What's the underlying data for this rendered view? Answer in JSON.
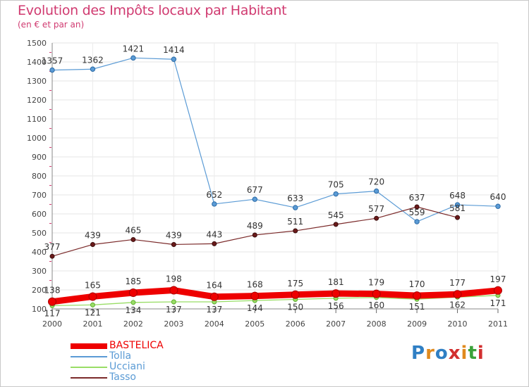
{
  "title": "Evolution des Impôts locaux par Habitant",
  "subtitle": "(en € et par an)",
  "logo": {
    "text": "Proxiti",
    "colors": [
      "#2f7fc4",
      "#e08a1e",
      "#2f7fc4",
      "#d22f2f",
      "#e08a1e",
      "#3aa23a",
      "#d22f2f"
    ]
  },
  "chart_data": {
    "type": "line",
    "title": "Evolution des Impôts locaux par Habitant",
    "subtitle": "(en € et par an)",
    "xlabel": "",
    "ylabel": "",
    "x": [
      "2000",
      "2001",
      "2002",
      "2003",
      "2004",
      "2005",
      "2006",
      "2007",
      "2008",
      "2009",
      "2010",
      "2011"
    ],
    "ylim": [
      100,
      1500
    ],
    "yticks": [
      100,
      200,
      300,
      400,
      500,
      600,
      700,
      800,
      900,
      1000,
      1100,
      1200,
      1300,
      1400,
      1500
    ],
    "grid": true,
    "legend_position": "bottom-left",
    "series": [
      {
        "name": "Tolla",
        "color": "#5b9bd5",
        "values": [
          1357,
          1362,
          1421,
          1414,
          652,
          677,
          633,
          705,
          720,
          559,
          648,
          640
        ],
        "labels": [
          "1357",
          "1362",
          "1421",
          "1414",
          "652",
          "677",
          "633",
          "705",
          "720",
          "559",
          "648",
          "640"
        ]
      },
      {
        "name": "Tasso",
        "color": "#7b2a2a",
        "values": [
          377,
          439,
          465,
          439,
          443,
          489,
          511,
          545,
          577,
          637,
          581,
          null
        ],
        "labels": [
          "377",
          "439",
          "465",
          "439",
          "443",
          "489",
          "511",
          "545",
          "577",
          "637",
          "581",
          ""
        ]
      },
      {
        "name": "Ucciani",
        "color": "#99dd66",
        "values": [
          117,
          121,
          134,
          137,
          137,
          144,
          150,
          156,
          160,
          151,
          162,
          171
        ],
        "labels": [
          "117",
          "121",
          "134",
          "137",
          "137",
          "144",
          "150",
          "156",
          "160",
          "151",
          "162",
          "171"
        ]
      },
      {
        "name": "BASTELICA",
        "color": "#ee0000",
        "values": [
          138,
          165,
          185,
          198,
          164,
          168,
          175,
          181,
          179,
          170,
          177,
          197
        ],
        "labels": [
          "138",
          "165",
          "185",
          "198",
          "164",
          "168",
          "175",
          "181",
          "179",
          "170",
          "177",
          "197"
        ]
      }
    ],
    "legend": [
      "BASTELICA",
      "Tolla",
      "Ucciani",
      "Tasso"
    ]
  }
}
